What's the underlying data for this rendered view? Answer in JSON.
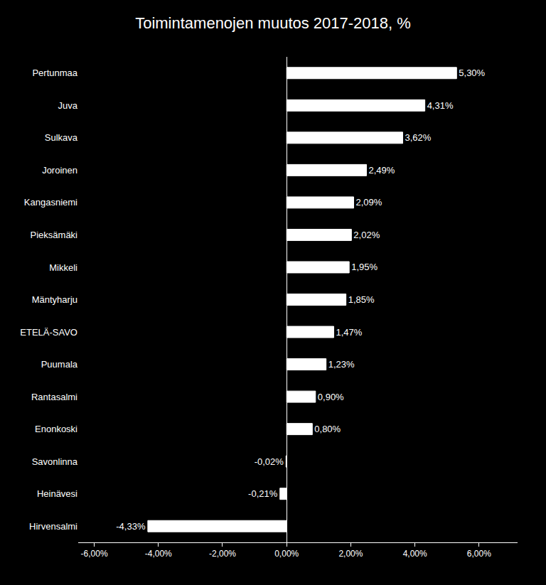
{
  "chart_data": {
    "type": "bar",
    "orientation": "horizontal",
    "title": "Toimintamenojen muutos 2017-2018, %",
    "categories": [
      "Hirvensalmi",
      "Heinävesi",
      "Savonlinna",
      "Enonkoski",
      "Rantasalmi",
      "Puumala",
      "ETELÄ-SAVO",
      "Mäntyharju",
      "Mikkeli",
      "Pieksämäki",
      "Kangasniemi",
      "Joroinen",
      "Sulkava",
      "Juva",
      "Pertunmaa"
    ],
    "values": [
      -4.33,
      -0.21,
      -0.02,
      0.8,
      0.9,
      1.23,
      1.47,
      1.85,
      1.95,
      2.02,
      2.09,
      2.49,
      3.62,
      4.31,
      5.3
    ],
    "value_labels": [
      "-4,33%",
      "-0,21%",
      "-0,02%",
      "0,80%",
      "0,90%",
      "1,23%",
      "1,47%",
      "1,85%",
      "1,95%",
      "2,02%",
      "2,09%",
      "2,49%",
      "3,62%",
      "4,31%",
      "5,30%"
    ],
    "data_labels": true,
    "color": "#ffffff",
    "xlim": [
      -6.5,
      7.2
    ],
    "xticks": [
      {
        "value": -6.0,
        "label": "-6,00%"
      },
      {
        "value": -4.0,
        "label": "-4,00%"
      },
      {
        "value": -2.0,
        "label": "-2,00%"
      },
      {
        "value": 0.0,
        "label": "0,00%"
      },
      {
        "value": 2.0,
        "label": "2,00%"
      },
      {
        "value": 4.0,
        "label": "4,00%"
      },
      {
        "value": 6.0,
        "label": "6,00%"
      }
    ],
    "grid": false
  }
}
